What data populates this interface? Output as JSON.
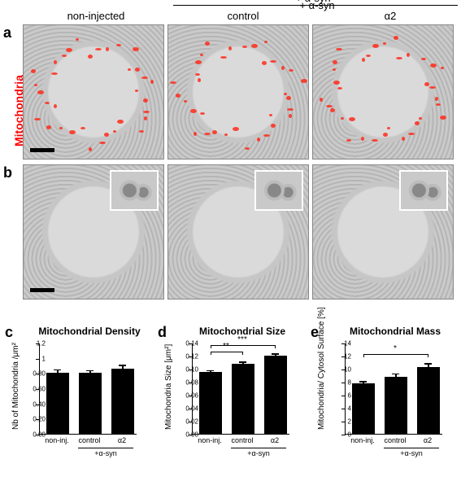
{
  "header": {
    "treatment_rule_label": "+ α-syn",
    "columns": [
      "non-injected",
      "control",
      "α2"
    ]
  },
  "side_label": {
    "text": "Mitochondria",
    "color": "#ff0000"
  },
  "panel_letters": {
    "a": "a",
    "b": "b",
    "c": "c",
    "d": "d",
    "e": "e"
  },
  "micrograph_rows": {
    "a": {
      "has_red_mito": true,
      "show_scalebar_in_first": true
    },
    "b": {
      "has_inset": true,
      "show_scalebar_in_first": true
    }
  },
  "mito_overlay": {
    "color": "#ff2a1a",
    "count_per_cell": 34
  },
  "charts": {
    "c": {
      "title": "Mitochondrial Density",
      "ylabel": "Nb of Mitochondria /μm²",
      "ylim": [
        0,
        1.2
      ],
      "ytick_step": 0.2,
      "bars": [
        {
          "label": "non-inj.",
          "value": 0.8,
          "err": 0.06
        },
        {
          "label": "control",
          "value": 0.8,
          "err": 0.05
        },
        {
          "label": "α2",
          "value": 0.86,
          "err": 0.06
        }
      ],
      "group": {
        "label": "+α-syn",
        "covers": [
          1,
          2
        ]
      },
      "sig": []
    },
    "d": {
      "title": "Mitochondrial Size",
      "ylabel": "Mitochondria Size [μm²]",
      "ylim": [
        0,
        0.14
      ],
      "ytick_step": 0.02,
      "bars": [
        {
          "label": "non-inj.",
          "value": 0.095,
          "err": 0.004
        },
        {
          "label": "control",
          "value": 0.108,
          "err": 0.004
        },
        {
          "label": "α2",
          "value": 0.12,
          "err": 0.005
        }
      ],
      "group": {
        "label": "+α-syn",
        "covers": [
          1,
          2
        ]
      },
      "sig": [
        {
          "from": 0,
          "to": 1,
          "label": "**",
          "y": 0.128
        },
        {
          "from": 0,
          "to": 2,
          "label": "***",
          "y": 0.137
        }
      ]
    },
    "e": {
      "title": "Mitochondrial Mass",
      "ylabel": "Mitochondria/ Cytosol Surface [%]",
      "ylim": [
        0,
        14
      ],
      "ytick_step": 2,
      "bars": [
        {
          "label": "non-inj.",
          "value": 7.7,
          "err": 0.5
        },
        {
          "label": "control",
          "value": 8.8,
          "err": 0.6
        },
        {
          "label": "α2",
          "value": 10.2,
          "err": 0.8
        }
      ],
      "group": {
        "label": "+α-syn",
        "covers": [
          1,
          2
        ]
      },
      "sig": [
        {
          "from": 0,
          "to": 2,
          "label": "*",
          "y": 12.4
        }
      ]
    }
  },
  "style": {
    "bar_color": "#000000",
    "axis_color": "#000000",
    "font_family": "Arial",
    "title_fontsize": 12,
    "axis_fontsize": 10,
    "tick_fontsize": 8
  }
}
